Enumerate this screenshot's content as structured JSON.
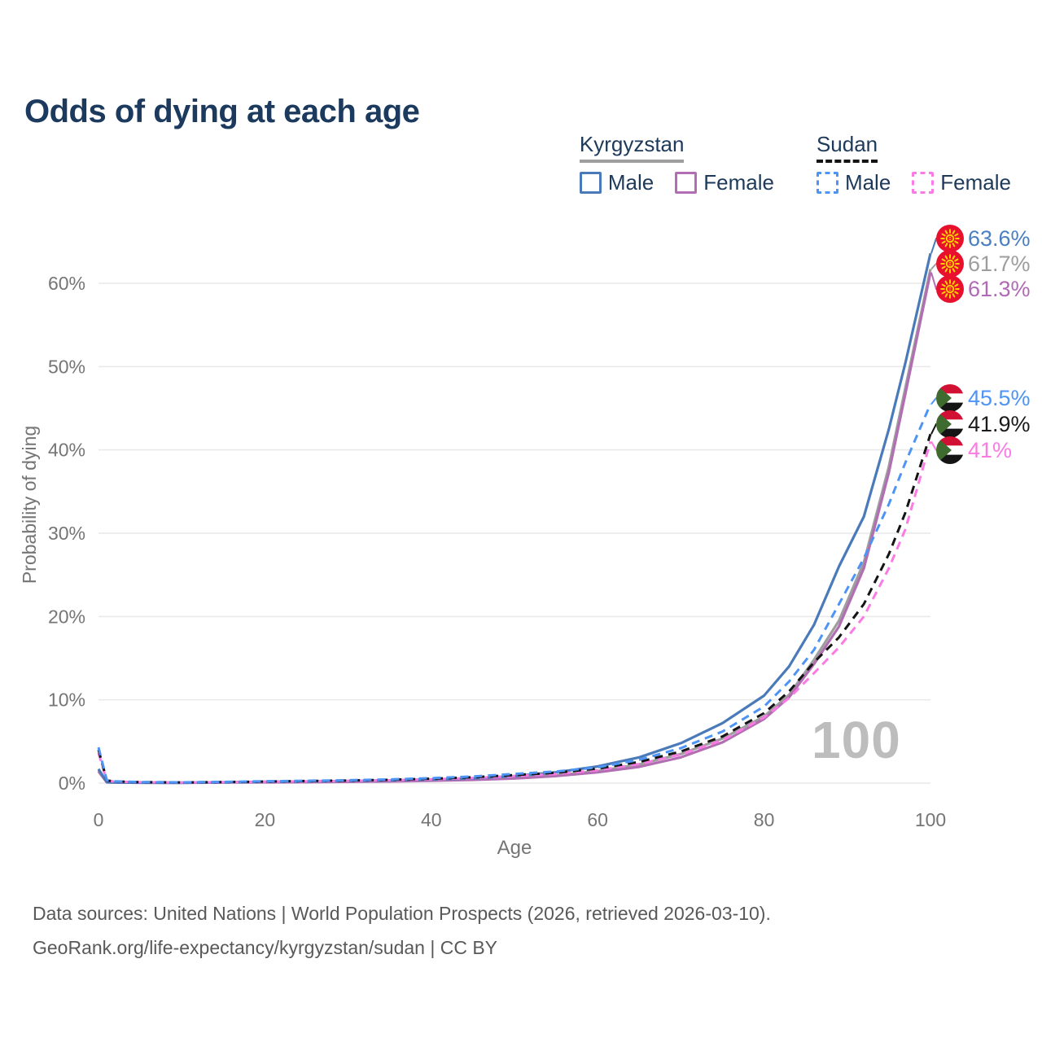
{
  "page": {
    "title": "Odds of dying at each age"
  },
  "legend": {
    "groups": [
      {
        "name": "Kyrgyzstan",
        "line_style": "solid",
        "line_color": "#9e9e9e",
        "items": [
          {
            "label": "Male",
            "color": "#4a7ab9",
            "dashed": false
          },
          {
            "label": "Female",
            "color": "#b26eb2",
            "dashed": false
          }
        ]
      },
      {
        "name": "Sudan",
        "line_style": "dashed",
        "line_color": "#141414",
        "items": [
          {
            "label": "Male",
            "color": "#4d94f5",
            "dashed": true
          },
          {
            "label": "Female",
            "color": "#fb7ae4",
            "dashed": true
          }
        ]
      }
    ]
  },
  "axes": {
    "y_title": "Probability of dying",
    "x_title": "Age",
    "y_ticks": [
      {
        "label": "0%",
        "value": 0
      },
      {
        "label": "10%",
        "value": 10
      },
      {
        "label": "20%",
        "value": 20
      },
      {
        "label": "30%",
        "value": 30
      },
      {
        "label": "40%",
        "value": 40
      },
      {
        "label": "50%",
        "value": 50
      },
      {
        "label": "60%",
        "value": 60
      }
    ],
    "x_ticks": [
      {
        "label": "0",
        "value": 0
      },
      {
        "label": "20",
        "value": 20
      },
      {
        "label": "40",
        "value": 40
      },
      {
        "label": "60",
        "value": 60
      },
      {
        "label": "80",
        "value": 80
      },
      {
        "label": "100",
        "value": 100
      }
    ]
  },
  "age_indicator": "100",
  "footer": {
    "line1": "Data sources: United Nations | World Population Prospects (2026, retrieved 2026-03-10).",
    "line2": "GeoRank.org/life-expectancy/kyrgyzstan/sudan | CC BY"
  },
  "chart_data": {
    "type": "line",
    "title": "Odds of dying at each age",
    "xlabel": "Age",
    "ylabel": "Probability of dying",
    "xlim": [
      0,
      100
    ],
    "ylim": [
      0,
      66
    ],
    "grid": "horizontal",
    "legend_position": "top-right",
    "x": [
      0,
      1,
      2,
      5,
      10,
      15,
      20,
      25,
      30,
      35,
      40,
      45,
      50,
      55,
      60,
      65,
      70,
      75,
      80,
      83,
      86,
      89,
      92,
      95,
      97,
      100
    ],
    "series": [
      {
        "name": "Kyrgyzstan Male",
        "country": "Kyrgyzstan",
        "sex": "male",
        "color": "#4a7ab9",
        "dashed": false,
        "flag": "kyrgyzstan",
        "end_label": "63.6%",
        "end_label_color": "#4a7fc1",
        "values": [
          1.7,
          0.12,
          0.09,
          0.06,
          0.05,
          0.1,
          0.16,
          0.2,
          0.26,
          0.33,
          0.44,
          0.58,
          0.85,
          1.3,
          2.0,
          3.1,
          4.8,
          7.2,
          10.5,
          14,
          19,
          26,
          32,
          42.5,
          50.5,
          63.6
        ]
      },
      {
        "name": "Kyrgyzstan",
        "country": "Kyrgyzstan",
        "sex": "both",
        "color": "#9e9e9e",
        "dashed": false,
        "flag": "kyrgyzstan",
        "end_label": "61.7%",
        "end_label_color": "#9e9e9e",
        "values": [
          1.55,
          0.11,
          0.08,
          0.05,
          0.045,
          0.09,
          0.12,
          0.15,
          0.2,
          0.26,
          0.35,
          0.46,
          0.66,
          0.95,
          1.45,
          2.25,
          3.5,
          5.35,
          8.0,
          10.6,
          14.8,
          19.5,
          26.5,
          38,
          47.5,
          61.7
        ]
      },
      {
        "name": "Kyrgyzstan Female",
        "country": "Kyrgyzstan",
        "sex": "female",
        "color": "#b26eb2",
        "dashed": false,
        "flag": "kyrgyzstan",
        "end_label": "61.3%",
        "end_label_color": "#b06ab5",
        "values": [
          1.4,
          0.1,
          0.07,
          0.045,
          0.04,
          0.08,
          0.1,
          0.12,
          0.16,
          0.21,
          0.29,
          0.39,
          0.56,
          0.85,
          1.3,
          1.95,
          3.1,
          4.9,
          7.7,
          10.3,
          14.3,
          18.8,
          25.8,
          37.3,
          46.8,
          61.3
        ]
      },
      {
        "name": "Sudan Male",
        "country": "Sudan",
        "sex": "male",
        "color": "#4d94f5",
        "dashed": true,
        "flag": "sudan",
        "end_label": "45.5%",
        "end_label_color": "#4d94f5",
        "values": [
          4.3,
          0.35,
          0.22,
          0.13,
          0.1,
          0.15,
          0.22,
          0.28,
          0.35,
          0.45,
          0.6,
          0.8,
          1.1,
          1.4,
          1.9,
          2.8,
          4.2,
          6.2,
          9.2,
          12.2,
          16,
          21.5,
          27,
          33.5,
          38.5,
          45.5
        ]
      },
      {
        "name": "Sudan",
        "country": "Sudan",
        "sex": "both",
        "color": "#141414",
        "dashed": true,
        "flag": "sudan",
        "end_label": "41.9%",
        "end_label_color": "#1a1a1a",
        "values": [
          4.0,
          0.32,
          0.2,
          0.12,
          0.09,
          0.13,
          0.19,
          0.25,
          0.31,
          0.4,
          0.53,
          0.7,
          0.97,
          1.25,
          1.75,
          2.55,
          3.8,
          5.6,
          8.4,
          11.0,
          14.5,
          17.5,
          21.5,
          27.5,
          32.5,
          41.9
        ]
      },
      {
        "name": "Sudan Female",
        "country": "Sudan",
        "sex": "female",
        "color": "#fb7ae4",
        "dashed": true,
        "flag": "sudan",
        "end_label": "41%",
        "end_label_color": "#fb7ae4",
        "values": [
          3.6,
          0.3,
          0.18,
          0.11,
          0.08,
          0.11,
          0.16,
          0.21,
          0.26,
          0.34,
          0.45,
          0.61,
          0.85,
          1.1,
          1.55,
          2.3,
          3.45,
          5.15,
          7.9,
          10.2,
          13.2,
          16.3,
          20,
          25.8,
          30.5,
          41.0
        ]
      }
    ]
  }
}
